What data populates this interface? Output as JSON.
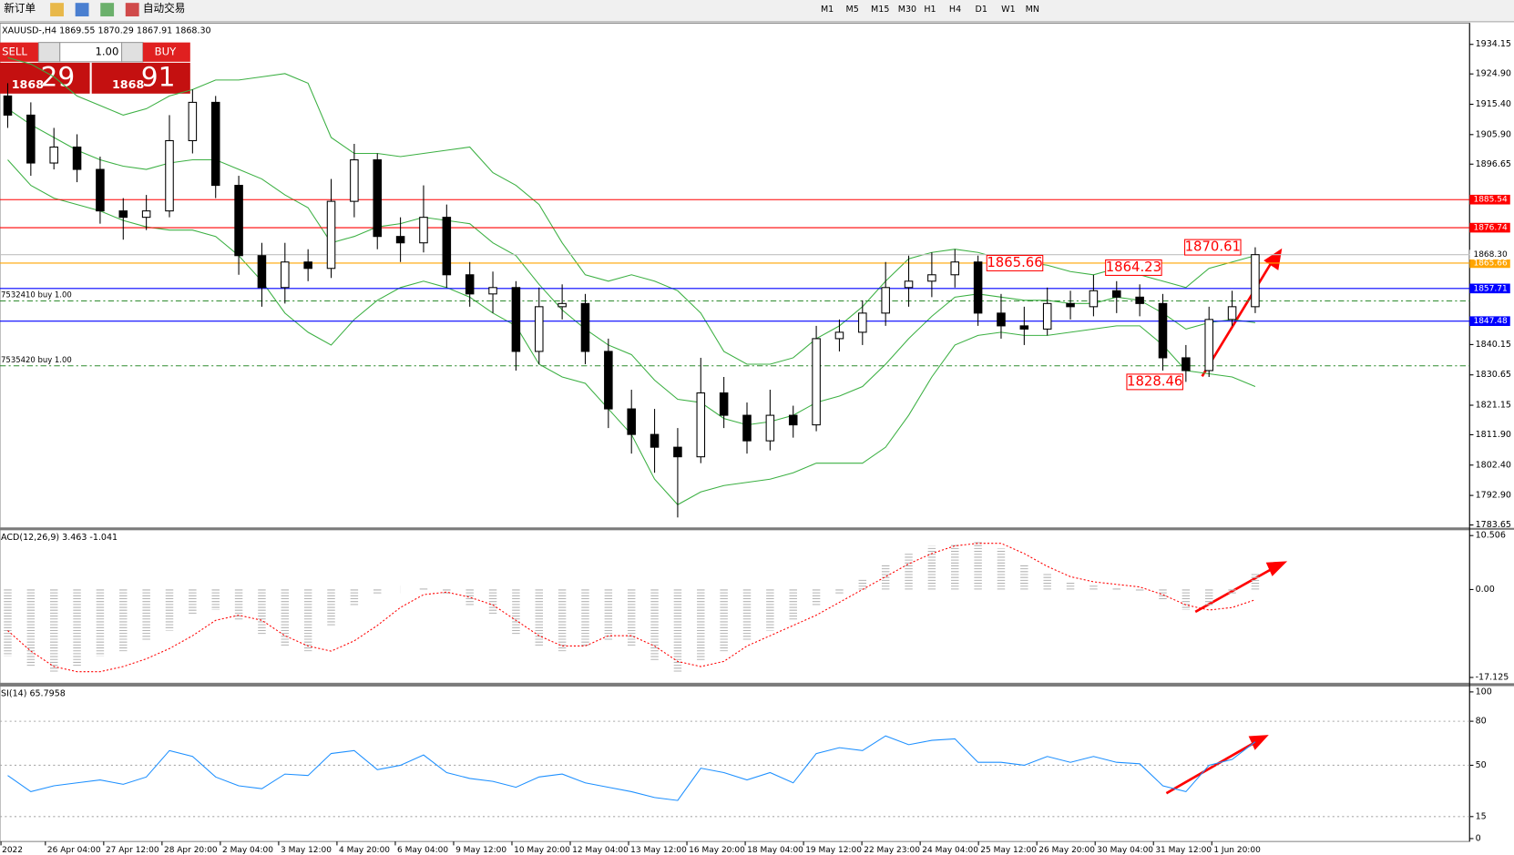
{
  "toolbar": {
    "new_order": "新订单",
    "auto_trading": "自动交易",
    "timeframes": [
      "M1",
      "M5",
      "M15",
      "M30",
      "H1",
      "H4",
      "D1",
      "W1",
      "MN"
    ]
  },
  "one_click": {
    "sell": "SELL",
    "buy": "BUY",
    "lot": "1.00",
    "sell_big": "1868",
    "sell_points": "29",
    "buy_big": "1868",
    "buy_points": "91"
  },
  "chart_data": [
    {
      "type": "candlestick",
      "title": "XAUUSD-,H4  1869.55 1870.29 1867.91 1868.30",
      "open": [
        1918,
        1912,
        1897,
        1902,
        1895,
        1882,
        1880,
        1882,
        1904,
        1916,
        1890,
        1868,
        1858,
        1866,
        1864,
        1885,
        1898,
        1874,
        1872,
        1880,
        1862,
        1856,
        1858,
        1838,
        1852,
        1853,
        1838,
        1820,
        1812,
        1808,
        1805,
        1825,
        1818,
        1810,
        1818,
        1815,
        1842,
        1844,
        1850,
        1858,
        1860,
        1862,
        1866,
        1850,
        1846,
        1845,
        1853,
        1852,
        1857,
        1855,
        1853,
        1836,
        1832,
        1848,
        1852
      ],
      "high": [
        1922,
        1916,
        1908,
        1906,
        1899,
        1886,
        1887,
        1912,
        1920,
        1918,
        1893,
        1872,
        1872,
        1870,
        1892,
        1903,
        1900,
        1880,
        1890,
        1884,
        1866,
        1863,
        1860,
        1858,
        1859,
        1856,
        1842,
        1826,
        1820,
        1814,
        1836,
        1830,
        1822,
        1826,
        1821,
        1846,
        1848,
        1854,
        1866,
        1868,
        1869,
        1870,
        1868,
        1856,
        1852,
        1858,
        1857,
        1862,
        1860,
        1859,
        1856,
        1840,
        1852,
        1857,
        1870.61
      ],
      "low": [
        1908,
        1893,
        1895,
        1891,
        1878,
        1873,
        1876,
        1880,
        1900,
        1886,
        1862,
        1852,
        1853,
        1860,
        1861,
        1880,
        1870,
        1866,
        1869,
        1858,
        1852,
        1850,
        1832,
        1834,
        1848,
        1834,
        1814,
        1806,
        1800,
        1786,
        1803,
        1814,
        1806,
        1807,
        1811,
        1813,
        1838,
        1840,
        1846,
        1852,
        1855,
        1858,
        1846,
        1842,
        1840,
        1843,
        1848,
        1849,
        1850,
        1849,
        1832,
        1828.46,
        1830,
        1846,
        1850
      ],
      "close": [
        1912,
        1897,
        1902,
        1895,
        1882,
        1880,
        1882,
        1904,
        1916,
        1890,
        1868,
        1858,
        1866,
        1864,
        1885,
        1898,
        1874,
        1872,
        1880,
        1862,
        1856,
        1858,
        1838,
        1852,
        1853,
        1838,
        1820,
        1812,
        1808,
        1805,
        1825,
        1818,
        1810,
        1818,
        1815,
        1842,
        1844,
        1850,
        1858,
        1860,
        1862,
        1866,
        1850,
        1846,
        1845,
        1853,
        1852,
        1857,
        1855,
        1853,
        1836,
        1832,
        1848,
        1852,
        1868.3
      ],
      "bollinger": {
        "color": "#3cb043",
        "upper": [
          1930,
          1928,
          1924,
          1918,
          1915,
          1912,
          1914,
          1918,
          1920,
          1923,
          1923,
          1924,
          1925,
          1922,
          1905,
          1900,
          1900,
          1899,
          1900,
          1901,
          1902,
          1894,
          1890,
          1884,
          1872,
          1862,
          1860,
          1862,
          1860,
          1857,
          1850,
          1838,
          1834,
          1834,
          1836,
          1842,
          1846,
          1852,
          1860,
          1867,
          1869,
          1870,
          1869,
          1867,
          1866,
          1865,
          1863,
          1862,
          1864,
          1862,
          1860,
          1858,
          1864,
          1866,
          1868
        ],
        "middle": [
          1914,
          1909,
          1905,
          1901,
          1898,
          1896,
          1895,
          1897,
          1898,
          1898,
          1895,
          1892,
          1887,
          1883,
          1872,
          1874,
          1877,
          1878,
          1880,
          1879,
          1878,
          1872,
          1868,
          1859,
          1851,
          1845,
          1840,
          1837,
          1829,
          1823,
          1822,
          1817,
          1815,
          1816,
          1818,
          1822,
          1824,
          1827,
          1834,
          1842,
          1849,
          1855,
          1856,
          1855,
          1854,
          1854,
          1853,
          1853,
          1855,
          1854,
          1850,
          1845,
          1847,
          1848,
          1847
        ],
        "lower": [
          1898,
          1890,
          1886,
          1884,
          1882,
          1879,
          1877,
          1876,
          1876,
          1874,
          1868,
          1860,
          1850,
          1844,
          1840,
          1848,
          1854,
          1858,
          1860,
          1858,
          1855,
          1850,
          1846,
          1834,
          1830,
          1828,
          1820,
          1812,
          1798,
          1790,
          1794,
          1796,
          1797,
          1798,
          1800,
          1803,
          1803,
          1803,
          1808,
          1818,
          1830,
          1840,
          1843,
          1844,
          1843,
          1843,
          1844,
          1845,
          1846,
          1846,
          1840,
          1832,
          1831,
          1830,
          1827
        ]
      },
      "ylim": [
        1783.65,
        1934.15
      ],
      "yticks": [
        1934.15,
        {
          "value": 1924.9,
          "label": "1924.90"
        },
        {
          "value": 1915.4,
          "label": "1915.40"
        },
        {
          "value": 1905.9,
          "label": "1905.90"
        },
        1896.65,
        1840.15,
        1830.65,
        1821.15,
        {
          "value": 1811.9,
          "label": "1811.90"
        },
        {
          "value": 1802.4,
          "label": "1802.40"
        },
        {
          "value": 1792.9,
          "label": "1792.90"
        },
        1783.65
      ],
      "levels": [
        {
          "value": 1885.54,
          "color": "#ff0000"
        },
        {
          "value": 1876.74,
          "color": "#ff0000"
        },
        {
          "value": 1865.66,
          "color": "#ffa500"
        },
        {
          "value": 1857.71,
          "color": "#0000ff"
        },
        {
          "value": 1847.48,
          "color": "#0000ff"
        }
      ],
      "bid": {
        "value": 1868.3,
        "label": "1868.30",
        "color": "#c0c0c0"
      },
      "orders": [
        {
          "value": 1853.8,
          "label": "7532410 buy 1.00"
        },
        {
          "value": 1833.5,
          "label": "7535420 buy 1.00"
        }
      ],
      "annotations": [
        1865.66,
        1864.23,
        1870.61,
        1828.46
      ]
    },
    {
      "type": "macd",
      "title": "ACD(12,26,9) 3.463 -1.041",
      "histogram_color": "#b4b4b4",
      "signal_color": "#ff0000",
      "histogram": [
        -13,
        -15,
        -16,
        -15,
        -13,
        -12,
        -10,
        -8,
        -5,
        -4,
        -6,
        -9,
        -11,
        -12,
        -7,
        -3,
        -1,
        0,
        0.5,
        -1,
        -3,
        -5,
        -9,
        -11,
        -12,
        -11,
        -10,
        -11,
        -14,
        -16,
        -14,
        -12,
        -10,
        -8,
        -6,
        -3,
        -1,
        2,
        5,
        7,
        8.5,
        9,
        9.5,
        8,
        5,
        3,
        1.5,
        1,
        0.5,
        -0.5,
        -2,
        -4,
        -3,
        -1,
        3
      ],
      "signal": [
        -8,
        -12,
        -15,
        -16,
        -16,
        -15,
        -13.5,
        -11.5,
        -9,
        -6,
        -5,
        -6,
        -9,
        -11,
        -12,
        -10,
        -7,
        -3.5,
        -1,
        -0.5,
        -1.5,
        -3,
        -6,
        -9,
        -11,
        -11,
        -9,
        -9,
        -11,
        -14,
        -15,
        -14,
        -11,
        -9,
        -7,
        -5,
        -2.5,
        0,
        2.5,
        5,
        7,
        8.5,
        9,
        9,
        7,
        4.5,
        2.5,
        1.5,
        1,
        0.5,
        -1,
        -3,
        -4,
        -3.5,
        -2
      ],
      "ylim": [
        -18.25,
        11.63
      ],
      "yticks": [
        10.506,
        {
          "value": 0,
          "label": "0.00"
        },
        -17.125
      ]
    },
    {
      "type": "line",
      "title": "SI(14) 65.7958",
      "color": "#1e90ff",
      "values": [
        43,
        32,
        36,
        38,
        40,
        37,
        42,
        60,
        56,
        42,
        36,
        34,
        44,
        43,
        58,
        60,
        47,
        50,
        57,
        45,
        41,
        39,
        35,
        42,
        44,
        38,
        35,
        32,
        28,
        26,
        48,
        45,
        40,
        45,
        38,
        58,
        62,
        60,
        70,
        64,
        67,
        68,
        52,
        52,
        50,
        56,
        52,
        56,
        52,
        51,
        36,
        32,
        50,
        54,
        66
      ],
      "ylim": [
        0,
        100
      ],
      "yticks": [
        100,
        80,
        50,
        15,
        0
      ]
    }
  ],
  "date_axis": [
    "2022",
    "26 Apr 04:00",
    "27 Apr 12:00",
    "28 Apr 20:00",
    "2 May 04:00",
    "3 May 12:00",
    "4 May 20:00",
    "6 May 04:00",
    "9 May 12:00",
    "10 May 20:00",
    "12 May 04:00",
    "13 May 12:00",
    "16 May 20:00",
    "18 May 04:00",
    "19 May 12:00",
    "22 May 23:00",
    "24 May 04:00",
    "25 May 12:00",
    "26 May 20:00",
    "30 May 04:00",
    "31 May 12:00",
    "1 Jun 20:00"
  ]
}
